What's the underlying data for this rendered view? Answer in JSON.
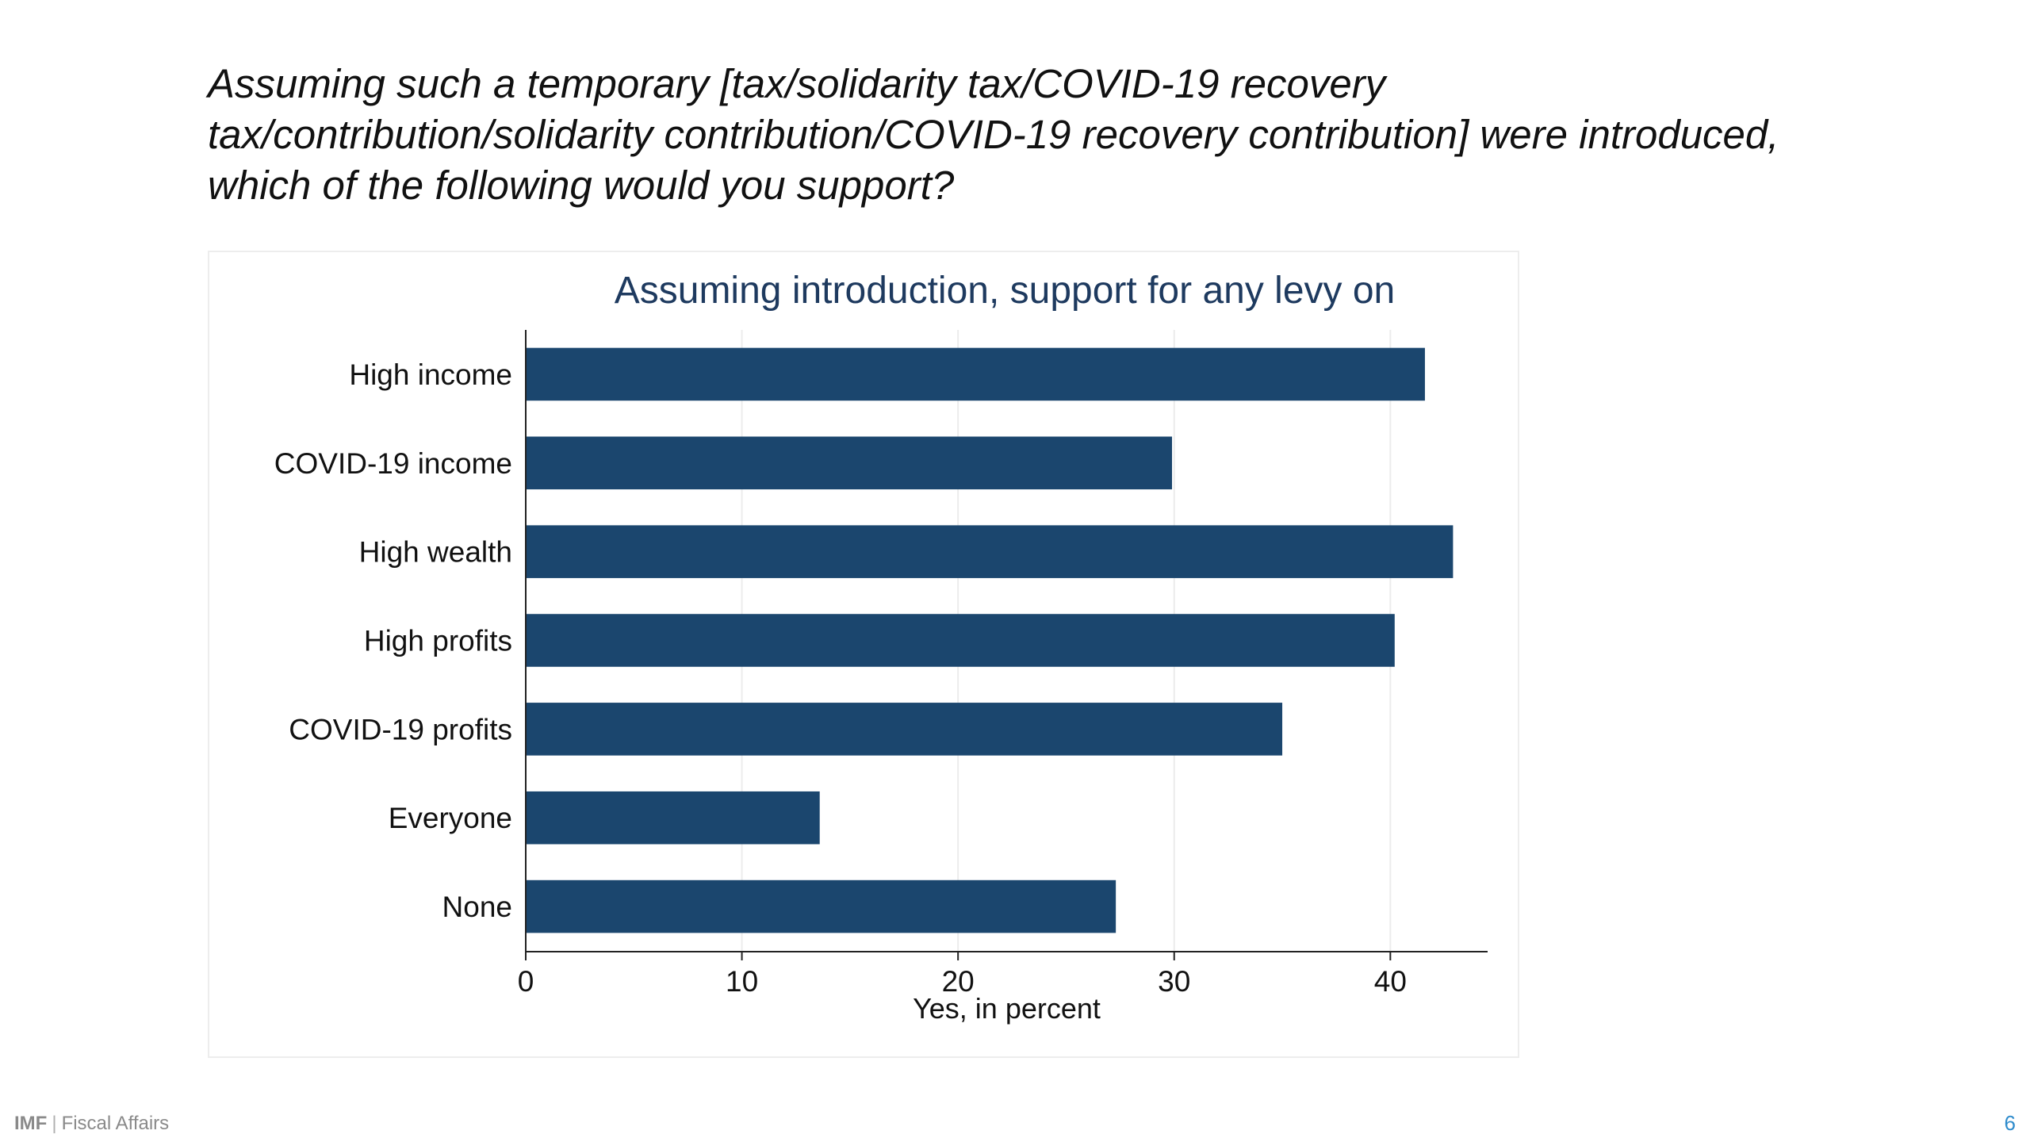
{
  "slide": {
    "question": "Assuming such a temporary [tax/solidarity tax/COVID-19 recovery tax/contribution/solidarity contribution/COVID-19 recovery contribution] were introduced, which of the following would you support?",
    "footer_brand": "IMF",
    "footer_divider": "|",
    "footer_dept": "Fiscal Affairs",
    "page_number": "6"
  },
  "chart_data": {
    "type": "bar",
    "orientation": "horizontal",
    "title": "Assuming introduction, support for any levy on",
    "xlabel": "Yes, in percent",
    "ylabel": "",
    "categories": [
      "High income",
      "COVID-19 income",
      "High wealth",
      "High profits",
      "COVID-19 profits",
      "Everyone",
      "None"
    ],
    "values": [
      41.6,
      29.9,
      42.9,
      40.2,
      35.0,
      13.6,
      27.3
    ],
    "xlim": [
      0,
      44.5
    ],
    "xticks": [
      0,
      10,
      20,
      30,
      40
    ],
    "grid": true,
    "bar_color": "#1b466e",
    "title_color": "#1e3a5f",
    "grid_color": "#ececec"
  }
}
